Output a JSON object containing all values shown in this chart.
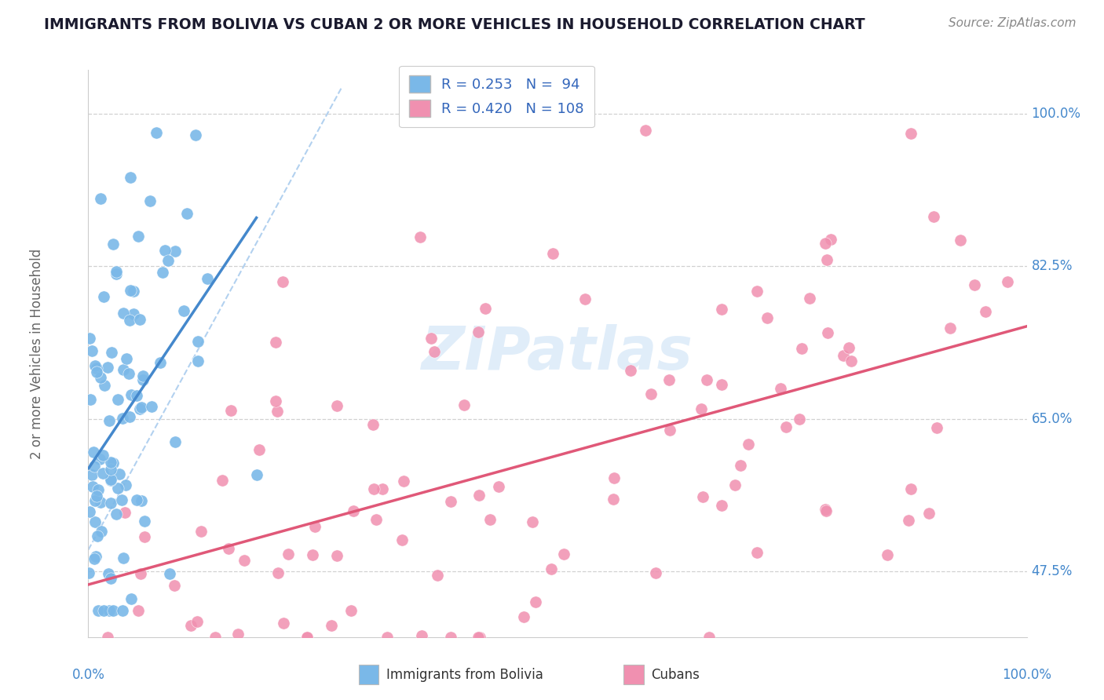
{
  "title": "IMMIGRANTS FROM BOLIVIA VS CUBAN 2 OR MORE VEHICLES IN HOUSEHOLD CORRELATION CHART",
  "source": "Source: ZipAtlas.com",
  "ylabel": "2 or more Vehicles in Household",
  "y_ticks": [
    47.5,
    65.0,
    82.5,
    100.0
  ],
  "y_tick_labels": [
    "47.5%",
    "65.0%",
    "82.5%",
    "100.0%"
  ],
  "bolivia_color": "#7ab8e8",
  "cuban_color": "#f090b0",
  "bolivia_line_color": "#4488cc",
  "cuban_line_color": "#e05878",
  "bolivia_dashed_color": "#aaccee",
  "watermark": "ZIPatlas",
  "bolivia_R": 0.253,
  "bolivia_N": 94,
  "cuban_R": 0.42,
  "cuban_N": 108,
  "bolivia_legend_label": "Immigrants from Bolivia",
  "cuban_legend_label": "Cubans",
  "legend_r1": "R = 0.253   N =  94",
  "legend_r2": "R = 0.420   N = 108",
  "xlim": [
    0.0,
    100.0
  ],
  "ylim": [
    40.0,
    105.0
  ],
  "grid_color": "#cccccc",
  "background_color": "#ffffff",
  "title_color": "#1a1a2e",
  "source_color": "#888888",
  "axis_label_color": "#666666",
  "tick_label_color": "#4488cc",
  "legend_label_color": "#3366bb"
}
